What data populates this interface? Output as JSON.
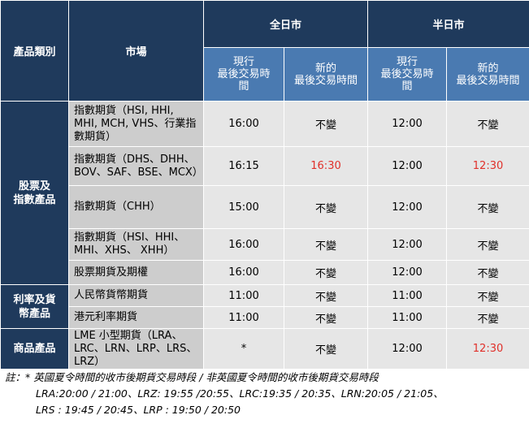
{
  "header": {
    "category": "產品類別",
    "market": "市場",
    "full_day": "全日市",
    "half_day": "半日市",
    "current_last": [
      "現行",
      "最後交易時",
      "間"
    ],
    "new_last": [
      "新的",
      "最後交易時間"
    ]
  },
  "rows": [
    {
      "market": "指數期貨（HSI, HHI, MHI, MCH, VHS、行業指數期貨）",
      "full_current": "16:00",
      "full_new": "不變",
      "half_current": "12:00",
      "half_new": "不變"
    },
    {
      "market": "指數期貨（DHS、DHH、BOV、SAF、BSE、MCX）",
      "full_current": "16:15",
      "full_new": "16:30",
      "half_current": "12:00",
      "half_new": "12:30"
    },
    {
      "market": "指數期貨（CHH）",
      "full_current": "15:00",
      "full_new": "不變",
      "half_current": "12:00",
      "half_new": "不變"
    },
    {
      "market": "指數期貨（HSI、HHI、MHI、XHS、 XHH）",
      "full_current": "16:00",
      "full_new": "不變",
      "half_current": "12:00",
      "half_new": "不變"
    },
    {
      "market": "股票期貨及期權",
      "full_current": "16:00",
      "full_new": "不變",
      "half_current": "12:00",
      "half_new": "不變"
    },
    {
      "market": "人民幣貨幣期貨",
      "full_current": "11:00",
      "full_new": "不變",
      "half_current": "11:00",
      "half_new": "不變"
    },
    {
      "market": "港元利率期貨",
      "full_current": "11:00",
      "full_new": "不變",
      "half_current": "11:00",
      "half_new": "不變"
    },
    {
      "market": "LME 小型期貨（LRA、LRC、LRN、LRP、LRS、LRZ）",
      "full_current": "*",
      "full_new": "不變",
      "half_current": "12:00",
      "half_new": "12:30"
    }
  ],
  "categories": {
    "equity": [
      "股票及",
      "指數產品"
    ],
    "rates": [
      "利率及貨",
      "幣產品"
    ],
    "commodity": "商品產品"
  },
  "note": {
    "line1": "註：* 英國夏令時間的收市後期貨交易時段 / 非英國夏令時間的收市後期貨交易時段",
    "line2": "LRA:20:00 / 21:00、LRZ: 19:55 /20:55、LRC:19:35 / 20:35、LRN:20:05 / 21:05、",
    "line3": "LRS : 19:45 / 20:45、LRP : 19:50 / 20:50"
  },
  "colors": {
    "header_dark": "#1f3a5c",
    "header_sub": "#4a7ab1",
    "market_cell": "#cdcdcd",
    "value_cell": "#e6e6e6",
    "changed_value": "#e0302a"
  }
}
